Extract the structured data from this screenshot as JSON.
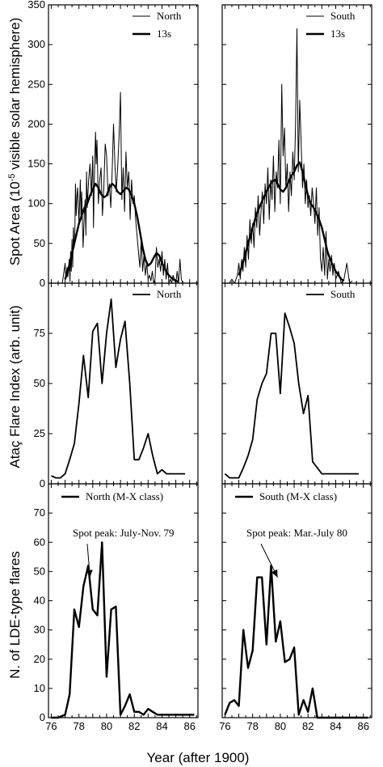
{
  "chart_data": [
    {
      "type": "line",
      "row": 0,
      "col": 0,
      "ylabel": "Spot Area (10^-5 visible solar hemisphere)",
      "ylim": [
        0,
        350
      ],
      "yticks": [
        0,
        50,
        100,
        150,
        200,
        250,
        300,
        350
      ],
      "xlim": [
        75.8,
        86.6
      ],
      "legend_position": "top-right",
      "series": [
        {
          "name": "North",
          "style": "thin",
          "x": [
            76.8,
            76.9,
            77.0,
            77.05,
            77.1,
            77.15,
            77.2,
            77.3,
            77.35,
            77.4,
            77.45,
            77.5,
            77.55,
            77.6,
            77.65,
            77.7,
            77.75,
            77.8,
            77.85,
            77.9,
            78.0,
            78.05,
            78.1,
            78.15,
            78.2,
            78.3,
            78.4,
            78.45,
            78.5,
            78.55,
            78.6,
            78.7,
            78.8,
            78.9,
            79.0,
            79.05,
            79.1,
            79.2,
            79.25,
            79.3,
            79.4,
            79.5,
            79.6,
            79.7,
            79.8,
            79.9,
            80.0,
            80.1,
            80.2,
            80.3,
            80.4,
            80.5,
            80.6,
            80.7,
            80.8,
            80.9,
            81.0,
            81.1,
            81.2,
            81.3,
            81.4,
            81.5,
            81.6,
            81.7,
            81.8,
            81.9,
            82.0,
            82.1,
            82.2,
            82.3,
            82.4,
            82.5,
            82.6,
            82.7,
            82.8,
            82.9,
            83.0,
            83.1,
            83.2,
            83.3,
            83.4,
            83.5,
            83.6,
            83.7,
            83.8,
            83.9,
            84.0,
            84.1,
            84.2,
            84.3,
            84.4,
            84.5,
            84.6,
            84.7,
            84.8,
            84.9,
            85.0,
            85.1,
            85.2,
            85.3,
            85.4,
            85.5
          ],
          "values": [
            0,
            12,
            25,
            5,
            15,
            20,
            8,
            30,
            2,
            40,
            15,
            55,
            20,
            70,
            45,
            50,
            125,
            85,
            108,
            120,
            75,
            100,
            130,
            80,
            115,
            45,
            90,
            105,
            60,
            140,
            95,
            130,
            150,
            110,
            160,
            70,
            120,
            190,
            150,
            180,
            100,
            130,
            145,
            85,
            120,
            175,
            160,
            110,
            125,
            95,
            140,
            200,
            150,
            115,
            145,
            185,
            240,
            105,
            145,
            90,
            165,
            120,
            140,
            80,
            130,
            100,
            110,
            80,
            60,
            40,
            20,
            55,
            15,
            35,
            10,
            25,
            5,
            10,
            3,
            15,
            0,
            5,
            45,
            20,
            30,
            15,
            40,
            10,
            30,
            5,
            25,
            0,
            5,
            0,
            10,
            5,
            0,
            15,
            0,
            30,
            5,
            0
          ]
        },
        {
          "name": "13s",
          "style": "thick",
          "x": [
            77.0,
            77.2,
            77.4,
            77.6,
            77.8,
            78.0,
            78.2,
            78.4,
            78.6,
            78.8,
            79.0,
            79.2,
            79.4,
            79.6,
            79.8,
            80.0,
            80.2,
            80.4,
            80.6,
            80.8,
            81.0,
            81.2,
            81.4,
            81.6,
            81.8,
            82.0,
            82.2,
            82.4,
            82.6,
            82.8,
            83.0,
            83.2,
            83.4,
            83.6,
            83.8,
            84.0,
            84.2,
            84.4,
            84.6,
            84.8,
            85.0,
            85.2
          ],
          "values": [
            5,
            15,
            30,
            45,
            60,
            75,
            85,
            95,
            100,
            110,
            118,
            125,
            120,
            112,
            108,
            110,
            120,
            125,
            122,
            115,
            112,
            116,
            120,
            118,
            110,
            100,
            85,
            65,
            45,
            30,
            22,
            25,
            32,
            38,
            35,
            25,
            18,
            12,
            8,
            5,
            3,
            2
          ]
        }
      ]
    },
    {
      "type": "line",
      "row": 0,
      "col": 1,
      "ylim": [
        0,
        350
      ],
      "yticks": [
        0,
        50,
        100,
        150,
        200,
        250,
        300,
        350
      ],
      "xlim": [
        75.8,
        86.6
      ],
      "legend_position": "top-right",
      "series": [
        {
          "name": "South",
          "style": "thin",
          "x": [
            76.3,
            76.5,
            76.7,
            76.9,
            77.0,
            77.1,
            77.2,
            77.3,
            77.4,
            77.5,
            77.6,
            77.7,
            77.8,
            77.9,
            78.0,
            78.1,
            78.2,
            78.3,
            78.4,
            78.5,
            78.6,
            78.7,
            78.8,
            78.9,
            79.0,
            79.1,
            79.2,
            79.3,
            79.4,
            79.5,
            79.6,
            79.7,
            79.8,
            79.9,
            80.0,
            80.1,
            80.2,
            80.3,
            80.4,
            80.5,
            80.6,
            80.7,
            80.8,
            80.9,
            81.0,
            81.1,
            81.2,
            81.3,
            81.4,
            81.5,
            81.6,
            81.7,
            81.8,
            81.9,
            82.0,
            82.1,
            82.2,
            82.3,
            82.4,
            82.5,
            82.6,
            82.7,
            82.8,
            82.9,
            83.0,
            83.1,
            83.2,
            83.3,
            83.4,
            83.5,
            83.6,
            83.7,
            83.8,
            83.9,
            84.0,
            84.2,
            84.4,
            84.6,
            84.8,
            85.0,
            85.2
          ],
          "values": [
            0,
            5,
            0,
            10,
            25,
            5,
            30,
            15,
            45,
            20,
            60,
            30,
            80,
            50,
            75,
            45,
            95,
            70,
            110,
            60,
            90,
            115,
            75,
            125,
            100,
            145,
            80,
            130,
            105,
            160,
            90,
            140,
            120,
            180,
            100,
            250,
            160,
            195,
            120,
            150,
            90,
            140,
            110,
            165,
            130,
            200,
            320,
            140,
            230,
            180,
            120,
            150,
            100,
            130,
            95,
            110,
            85,
            120,
            100,
            75,
            120,
            60,
            95,
            30,
            15,
            45,
            10,
            65,
            5,
            30,
            15,
            35,
            10,
            25,
            5,
            15,
            0,
            5,
            25,
            0,
            3
          ]
        },
        {
          "name": "13s",
          "style": "thick",
          "x": [
            77.0,
            77.2,
            77.4,
            77.6,
            77.8,
            78.0,
            78.2,
            78.4,
            78.6,
            78.8,
            79.0,
            79.2,
            79.4,
            79.6,
            79.8,
            80.0,
            80.2,
            80.4,
            80.6,
            80.8,
            81.0,
            81.2,
            81.4,
            81.6,
            81.8,
            82.0,
            82.2,
            82.4,
            82.6,
            82.8,
            83.0,
            83.2,
            83.4,
            83.6,
            83.8,
            84.0,
            84.2,
            84.4,
            84.6
          ],
          "values": [
            10,
            20,
            32,
            45,
            58,
            70,
            82,
            92,
            100,
            108,
            115,
            122,
            128,
            130,
            125,
            118,
            115,
            120,
            128,
            135,
            140,
            148,
            152,
            140,
            125,
            110,
            100,
            95,
            88,
            80,
            70,
            55,
            40,
            30,
            22,
            15,
            10,
            5,
            3
          ]
        }
      ]
    },
    {
      "type": "line",
      "row": 1,
      "col": 0,
      "ylabel": "Ataç Flare Index (arb. unit)",
      "ylim": [
        0,
        100
      ],
      "yticks": [
        0,
        25,
        50,
        75
      ],
      "xlim": [
        75.8,
        86.6
      ],
      "legend_position": "top-right",
      "series": [
        {
          "name": "North",
          "style": "medium",
          "x": [
            76.0,
            76.33,
            76.67,
            77.0,
            77.33,
            77.67,
            78.0,
            78.33,
            78.67,
            79.0,
            79.33,
            79.67,
            80.0,
            80.33,
            80.67,
            81.0,
            81.33,
            81.67,
            82.0,
            82.33,
            82.67,
            83.0,
            83.33,
            83.67,
            84.0,
            84.33,
            84.67,
            85.0,
            85.33,
            85.67
          ],
          "values": [
            4,
            3,
            3,
            5,
            12,
            20,
            40,
            64,
            43,
            76,
            80,
            50,
            75,
            92,
            58,
            72,
            81,
            50,
            12,
            12,
            18,
            25,
            14,
            5,
            7,
            5,
            5,
            5,
            5,
            5
          ]
        }
      ]
    },
    {
      "type": "line",
      "row": 1,
      "col": 1,
      "ylim": [
        0,
        100
      ],
      "yticks": [
        0,
        25,
        50,
        75
      ],
      "xlim": [
        75.8,
        86.6
      ],
      "legend_position": "top-right",
      "series": [
        {
          "name": "South",
          "style": "medium",
          "x": [
            76.0,
            76.33,
            76.67,
            77.0,
            77.33,
            77.67,
            78.0,
            78.33,
            78.67,
            79.0,
            79.33,
            79.67,
            80.0,
            80.33,
            80.67,
            81.0,
            81.33,
            81.67,
            82.0,
            82.33,
            82.67,
            83.0,
            83.33,
            83.67,
            84.0,
            84.33,
            84.67,
            85.0,
            85.33,
            85.67
          ],
          "values": [
            5,
            3,
            3,
            3,
            8,
            14,
            22,
            42,
            50,
            55,
            75,
            75,
            45,
            85,
            78,
            70,
            50,
            35,
            44,
            11,
            8,
            5,
            5,
            5,
            5,
            5,
            5,
            5,
            5,
            5
          ]
        }
      ]
    },
    {
      "type": "line",
      "row": 2,
      "col": 0,
      "ylabel": "N. of LDE-type flares",
      "xlabel": "Year (after 1900)",
      "ylim": [
        0,
        80
      ],
      "yticks": [
        0,
        10,
        20,
        30,
        40,
        50,
        60,
        70
      ],
      "xticks": [
        76,
        78,
        80,
        82,
        84,
        86
      ],
      "xlim": [
        75.8,
        86.6
      ],
      "legend_position": "top-left",
      "series": [
        {
          "name": "North (M-X class)",
          "style": "thick",
          "x": [
            76.0,
            76.5,
            77.0,
            77.33,
            77.67,
            78.0,
            78.33,
            78.67,
            79.0,
            79.33,
            79.67,
            80.0,
            80.33,
            80.67,
            81.0,
            81.33,
            81.67,
            82.0,
            82.33,
            82.67,
            83.0,
            83.33,
            83.67,
            84.0,
            84.33,
            84.67,
            85.0,
            85.33,
            85.67,
            86.0,
            86.33
          ],
          "values": [
            0,
            0,
            1,
            8,
            37,
            31,
            45,
            52,
            37,
            35,
            60,
            14,
            37,
            38,
            1,
            4,
            8,
            2,
            2,
            1,
            3,
            2,
            1,
            1,
            1,
            1,
            1,
            1,
            1,
            1,
            1
          ]
        }
      ],
      "annotations": [
        {
          "text": "Spot peak: July-Nov. 79",
          "arrow_to": [
            78.8,
            48
          ]
        }
      ]
    },
    {
      "type": "line",
      "row": 2,
      "col": 1,
      "xlabel": "Year (after 1900)",
      "ylim": [
        0,
        80
      ],
      "yticks": [
        0,
        10,
        20,
        30,
        40,
        50,
        60,
        70
      ],
      "xticks": [
        76,
        78,
        80,
        82,
        84,
        86
      ],
      "xlim": [
        75.8,
        86.6
      ],
      "legend_position": "top-left",
      "series": [
        {
          "name": "South (M-X class)",
          "style": "thick",
          "x": [
            76.0,
            76.33,
            76.67,
            77.0,
            77.33,
            77.67,
            78.0,
            78.33,
            78.67,
            79.0,
            79.33,
            79.67,
            80.0,
            80.33,
            80.67,
            81.0,
            81.33,
            81.67,
            82.0,
            82.33,
            82.67,
            83.0,
            83.33,
            83.67,
            84.0,
            84.33,
            84.67,
            85.0,
            85.33,
            85.67,
            86.0,
            86.33
          ],
          "values": [
            1,
            5,
            6,
            4,
            30,
            17,
            23,
            48,
            48,
            25,
            52,
            26,
            33,
            19,
            20,
            24,
            1,
            6,
            2,
            10,
            0,
            0,
            0,
            0,
            0,
            0,
            0,
            0,
            0,
            0,
            0,
            0
          ]
        }
      ],
      "annotations": [
        {
          "text": "Spot peak: Mar.-July 80",
          "arrow_to": [
            79.8,
            48
          ]
        }
      ]
    }
  ],
  "labels": {
    "ylabel_top": "Spot Area (10",
    "ylabel_top_sup": "-5",
    "ylabel_top_rest": " visible solar hemisphere)",
    "ylabel_mid": "Ataç Flare Index (arb. unit)",
    "ylabel_bot": "N. of LDE-type flares",
    "xlabel": "Year (after 1900)"
  }
}
